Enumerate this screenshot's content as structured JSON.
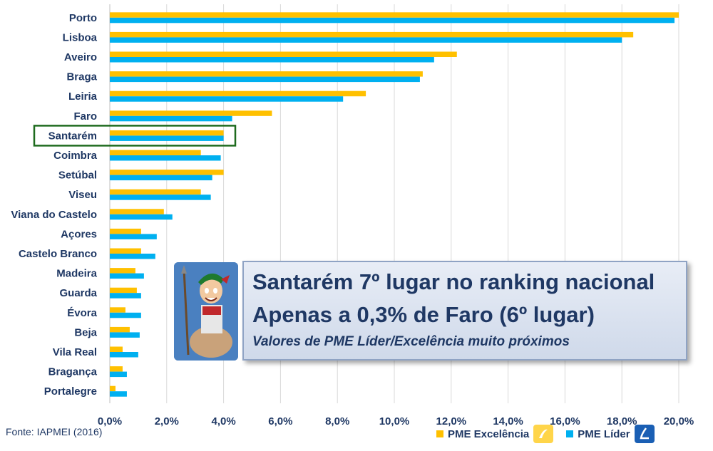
{
  "chart_data": {
    "type": "bar",
    "orientation": "horizontal",
    "categories": [
      "Porto",
      "Lisboa",
      "Aveiro",
      "Braga",
      "Leiria",
      "Faro",
      "Santarém",
      "Coimbra",
      "Setúbal",
      "Viseu",
      "Viana do Castelo",
      "Açores",
      "Castelo Branco",
      "Madeira",
      "Guarda",
      "Évora",
      "Beja",
      "Vila Real",
      "Bragança",
      "Portalegre"
    ],
    "series": [
      {
        "name": "PME Excelência",
        "color": "#ffc000",
        "values": [
          20.0,
          18.4,
          12.2,
          11.0,
          9.0,
          5.7,
          4.0,
          3.2,
          4.0,
          3.2,
          1.9,
          1.1,
          1.1,
          0.9,
          0.95,
          0.55,
          0.7,
          0.45,
          0.45,
          0.2
        ]
      },
      {
        "name": "PME Líder",
        "color": "#00b0f0",
        "values": [
          19.85,
          18.0,
          11.4,
          10.9,
          8.2,
          4.3,
          4.0,
          3.9,
          3.6,
          3.55,
          2.2,
          1.65,
          1.6,
          1.2,
          1.1,
          1.1,
          1.05,
          1.0,
          0.6,
          0.6
        ]
      }
    ],
    "xlim": [
      0,
      20
    ],
    "xticks": [
      "0,0%",
      "2,0%",
      "4,0%",
      "6,0%",
      "8,0%",
      "10,0%",
      "12,0%",
      "14,0%",
      "16,0%",
      "18,0%",
      "20,0%"
    ],
    "grid": true,
    "highlight_category": "Santarém",
    "legend_position": "bottom-right"
  },
  "source": "Fonte: IAPMEI (2016)",
  "callout": {
    "line1": "Santarém 7º lugar no ranking nacional",
    "line2": "Apenas a 0,3% de Faro (6º lugar)",
    "line3": "Valores de PME Líder/Excelência muito próximos"
  },
  "legend": {
    "excelencia_label": "PME Excelência",
    "lider_label": "PME Líder"
  },
  "colors": {
    "label": "#1f3864",
    "highlight_box": "#1e6b1e",
    "grid": "#d9d9d9"
  }
}
